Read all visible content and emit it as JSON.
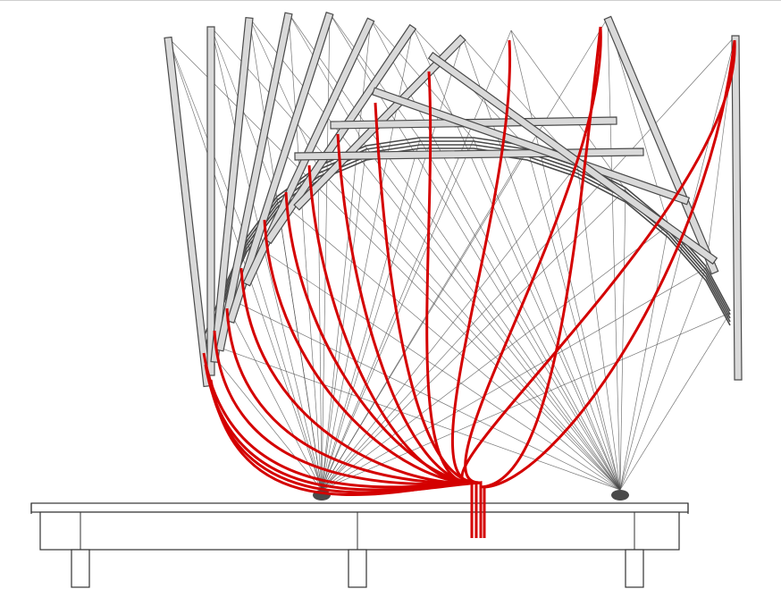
{
  "diagram": {
    "subject": "deployable-arch-linkage",
    "colors": {
      "background": "#ffffff",
      "structure_stroke": "#4a4a4a",
      "bar_fill": "#d9d9d9",
      "cable": "#d40000",
      "base_stroke": "#333333",
      "top_rule": "#cfcfcf"
    },
    "bar_count": 14,
    "cable_count": 15,
    "support_count": 2,
    "pier_count": 3,
    "labels": []
  }
}
